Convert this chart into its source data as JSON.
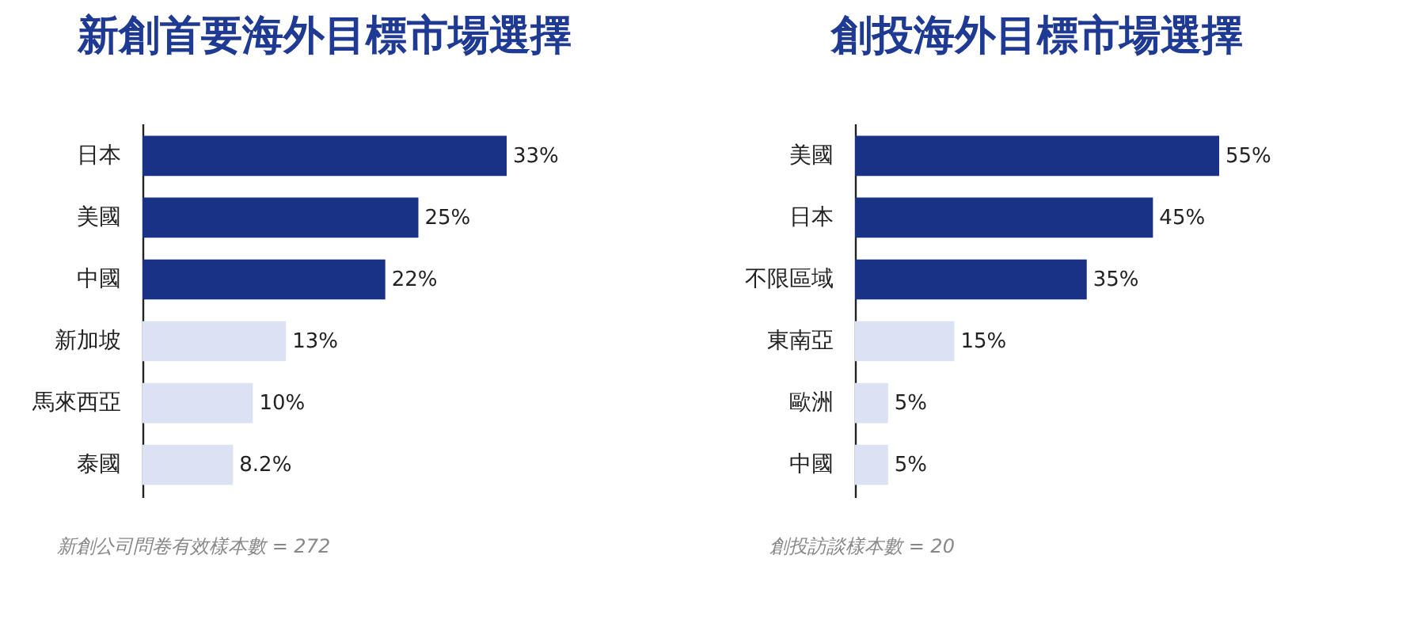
{
  "chart_data": [
    {
      "type": "bar",
      "orientation": "horizontal",
      "title": "新創首要海外目標市場選擇",
      "categories": [
        "日本",
        "美國",
        "中國",
        "新加坡",
        "馬來西亞",
        "泰國"
      ],
      "values": [
        33,
        25,
        22,
        13,
        10,
        8.2
      ],
      "colors": [
        "#1a3286",
        "#1a3286",
        "#1a3286",
        "#dbe2f3",
        "#dbe2f3",
        "#dbe2f3"
      ],
      "value_labels": [
        "33%",
        "25%",
        "22%",
        "13%",
        "10%",
        "8.2%"
      ],
      "annotations": [
        "新創公司問卷有效樣本數 = 272"
      ]
    },
    {
      "type": "bar",
      "orientation": "horizontal",
      "title": "創投海外目標市場選擇",
      "categories": [
        "美國",
        "日本",
        "不限區域",
        "東南亞",
        "歐洲",
        "中國"
      ],
      "values": [
        55,
        45,
        35,
        15,
        5,
        5
      ],
      "colors": [
        "#1a3286",
        "#1a3286",
        "#1a3286",
        "#dbe2f3",
        "#dbe2f3",
        "#dbe2f3"
      ],
      "value_labels": [
        "55%",
        "45%",
        "35%",
        "15%",
        "5%",
        "5%"
      ],
      "annotations": [
        "創投訪談樣本數 = 20"
      ]
    }
  ]
}
